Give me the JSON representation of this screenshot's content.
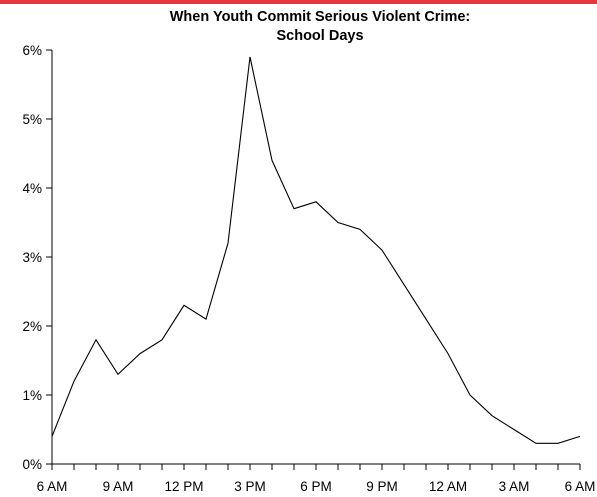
{
  "colors": {
    "top_rule": "#e8383f",
    "line": "#000000",
    "axis": "#000000"
  },
  "chart_data": {
    "type": "line",
    "title_lines": [
      "When Youth Commit Serious Violent Crime:",
      "School Days"
    ],
    "xlabel": "",
    "ylabel": "",
    "x_tick_labels": [
      "6 AM",
      "9 AM",
      "12 PM",
      "3 PM",
      "6 PM",
      "9 PM",
      "12 AM",
      "3 AM",
      "6 AM"
    ],
    "y_tick_labels": [
      "0%",
      "1%",
      "2%",
      "3%",
      "4%",
      "5%",
      "6%"
    ],
    "ylim": [
      0,
      6
    ],
    "x_hours_from_6am": [
      0,
      1,
      2,
      3,
      4,
      5,
      6,
      7,
      8,
      9,
      10,
      11,
      12,
      13,
      14,
      15,
      16,
      17,
      18,
      19,
      20,
      21,
      22,
      23,
      24
    ],
    "values": [
      0.4,
      1.2,
      1.8,
      1.3,
      1.6,
      1.8,
      2.3,
      2.1,
      3.2,
      5.9,
      4.4,
      3.7,
      3.8,
      3.5,
      3.4,
      3.1,
      2.6,
      2.1,
      1.6,
      1.0,
      0.7,
      0.5,
      0.3,
      0.3,
      0.4
    ],
    "grid": false,
    "legend": "none"
  }
}
